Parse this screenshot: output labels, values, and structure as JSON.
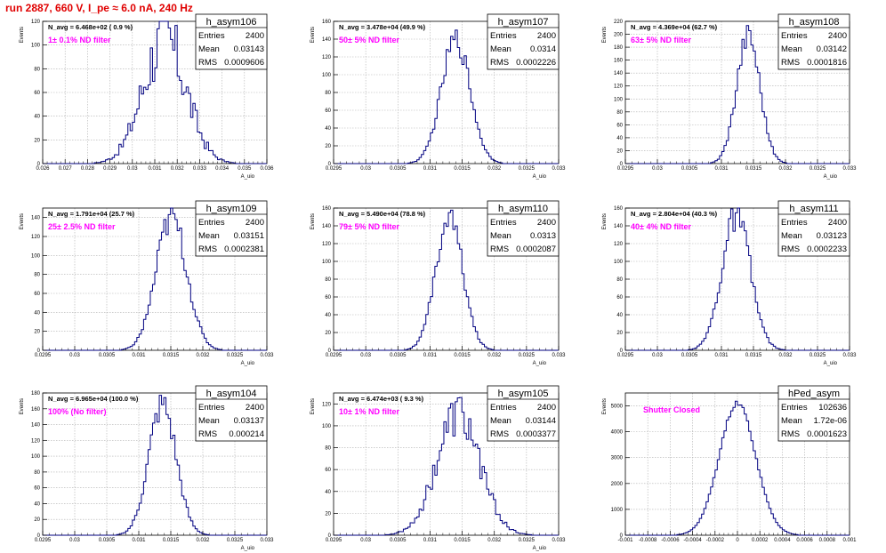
{
  "figure": {
    "title": "run 2887,   660 V, I_pe ≈ 6.0 nA, 240 Hz",
    "colors": {
      "title": "#e00000",
      "histogram": "#000080",
      "annotation": "#ff00ff",
      "grid": "#b0b0b0"
    }
  },
  "stat_labels": {
    "entries": "Entries",
    "mean": "Mean",
    "rms": "RMS"
  },
  "chart_data": [
    {
      "type": "bar",
      "name": "h_asym106",
      "xlabel": "A_uio",
      "ylabel": "Events",
      "navg": "N_avg = 6.468e+02 ( 0.9 %)",
      "filter": "1± 0.1% ND filter",
      "entries": "2400",
      "mean": "0.03143",
      "rms": "0.0009606",
      "mu": 0.03143,
      "sigma": 0.0009606,
      "ymax_data": 105,
      "noise": 0.3,
      "nbins": 100,
      "xlim": [
        0.026,
        0.036
      ],
      "ylim": [
        0,
        120
      ],
      "xticks": [
        "0.026",
        "0.027",
        "0.028",
        "0.029",
        "0.03",
        "0.031",
        "0.032",
        "0.033",
        "0.034",
        "0.035",
        "0.036"
      ],
      "yticks": [
        "0",
        "20",
        "40",
        "60",
        "80",
        "100",
        "120"
      ],
      "grid": true
    },
    {
      "type": "bar",
      "name": "h_asym107",
      "xlabel": "A_uio",
      "ylabel": "Events",
      "navg": "N_avg = 3.478e+04 (49.9 %)",
      "filter": "50± 5% ND filter",
      "entries": "2400",
      "mean": "0.0314",
      "rms": "0.0002226",
      "mu": 0.0314,
      "sigma": 0.0002226,
      "ymax_data": 140,
      "noise": 0.1,
      "nbins": 100,
      "xlim": [
        0.0295,
        0.033
      ],
      "ylim": [
        0,
        160
      ],
      "xticks": [
        "0.0295",
        "0.03",
        "0.0305",
        "0.031",
        "0.0315",
        "0.032",
        "0.0325",
        "0.033"
      ],
      "yticks": [
        "0",
        "20",
        "40",
        "60",
        "80",
        "100",
        "120",
        "140",
        "160"
      ],
      "grid": true
    },
    {
      "type": "bar",
      "name": "h_asym108",
      "xlabel": "A_uio",
      "ylabel": "Events",
      "navg": "N_avg = 4.369e+04 (62.7 %)",
      "filter": "63± 5% ND filter",
      "entries": "2400",
      "mean": "0.03142",
      "rms": "0.0001816",
      "mu": 0.03142,
      "sigma": 0.0001816,
      "ymax_data": 200,
      "noise": 0.1,
      "nbins": 100,
      "xlim": [
        0.0295,
        0.033
      ],
      "ylim": [
        0,
        220
      ],
      "xticks": [
        "0.0295",
        "0.03",
        "0.0305",
        "0.031",
        "0.0315",
        "0.032",
        "0.0325",
        "0.033"
      ],
      "yticks": [
        "0",
        "20",
        "40",
        "60",
        "80",
        "100",
        "120",
        "140",
        "160",
        "180",
        "200",
        "220"
      ],
      "grid": true
    },
    {
      "type": "bar",
      "name": "h_asym109",
      "xlabel": "A_uio",
      "ylabel": "Events",
      "navg": "N_avg = 1.791e+04 (25.7 %)",
      "filter": "25± 2.5% ND filter",
      "entries": "2400",
      "mean": "0.03151",
      "rms": "0.0002381",
      "mu": 0.03151,
      "sigma": 0.0002381,
      "ymax_data": 140,
      "noise": 0.12,
      "nbins": 100,
      "xlim": [
        0.0295,
        0.033
      ],
      "ylim": [
        0,
        150
      ],
      "xticks": [
        "0.0295",
        "0.03",
        "0.0305",
        "0.031",
        "0.0315",
        "0.032",
        "0.0325",
        "0.033"
      ],
      "yticks": [
        "0",
        "20",
        "40",
        "60",
        "80",
        "100",
        "120",
        "140"
      ],
      "grid": true
    },
    {
      "type": "bar",
      "name": "h_asym110",
      "xlabel": "A_uio",
      "ylabel": "Events",
      "navg": "N_avg = 5.490e+04 (78.8 %)",
      "filter": "79± 5% ND filter",
      "entries": "2400",
      "mean": "0.0313",
      "rms": "0.0002087",
      "mu": 0.0313,
      "sigma": 0.0002087,
      "ymax_data": 150,
      "noise": 0.1,
      "nbins": 100,
      "xlim": [
        0.0295,
        0.033
      ],
      "ylim": [
        0,
        160
      ],
      "xticks": [
        "0.0295",
        "0.03",
        "0.0305",
        "0.031",
        "0.0315",
        "0.032",
        "0.0325",
        "0.033"
      ],
      "yticks": [
        "0",
        "20",
        "40",
        "60",
        "80",
        "100",
        "120",
        "140",
        "160"
      ],
      "grid": true
    },
    {
      "type": "bar",
      "name": "h_asym111",
      "xlabel": "A_uio",
      "ylabel": "Events",
      "navg": "N_avg = 2.804e+04 (40.3 %)",
      "filter": "40± 4% ND filter",
      "entries": "2400",
      "mean": "0.03123",
      "rms": "0.0002233",
      "mu": 0.03123,
      "sigma": 0.0002233,
      "ymax_data": 150,
      "noise": 0.12,
      "nbins": 100,
      "xlim": [
        0.0295,
        0.033
      ],
      "ylim": [
        0,
        160
      ],
      "xticks": [
        "0.0295",
        "0.03",
        "0.0305",
        "0.031",
        "0.0315",
        "0.032",
        "0.0325",
        "0.033"
      ],
      "yticks": [
        "0",
        "20",
        "40",
        "60",
        "80",
        "100",
        "120",
        "140",
        "160"
      ],
      "grid": true
    },
    {
      "type": "bar",
      "name": "h_asym104",
      "xlabel": "A_uio",
      "ylabel": "Events",
      "navg": "N_avg = 6.965e+04 (100.0 %)",
      "filter": "100% (No filter)",
      "entries": "2400",
      "mean": "0.03137",
      "rms": "0.000214",
      "mu": 0.03137,
      "sigma": 0.000214,
      "ymax_data": 165,
      "noise": 0.12,
      "nbins": 100,
      "xlim": [
        0.0295,
        0.033
      ],
      "ylim": [
        0,
        180
      ],
      "xticks": [
        "0.0295",
        "0.03",
        "0.0305",
        "0.031",
        "0.0315",
        "0.032",
        "0.0325",
        "0.033"
      ],
      "yticks": [
        "0",
        "20",
        "40",
        "60",
        "80",
        "100",
        "120",
        "140",
        "160",
        "180"
      ],
      "grid": true
    },
    {
      "type": "bar",
      "name": "h_asym105",
      "xlabel": "A_uio",
      "ylabel": "Events",
      "navg": "N_avg = 6.474e+03 ( 9.3 %)",
      "filter": "10± 1% ND filter",
      "entries": "2400",
      "mean": "0.03144",
      "rms": "0.0003377",
      "mu": 0.03144,
      "sigma": 0.0003377,
      "ymax_data": 110,
      "noise": 0.2,
      "nbins": 100,
      "xlim": [
        0.0295,
        0.033
      ],
      "ylim": [
        0,
        130
      ],
      "xticks": [
        "0.0295",
        "0.03",
        "0.0305",
        "0.031",
        "0.0315",
        "0.032",
        "0.0325",
        "0.033"
      ],
      "yticks": [
        "0",
        "20",
        "40",
        "60",
        "80",
        "100",
        "120"
      ],
      "grid": true
    },
    {
      "type": "bar",
      "name": "hPed_asym",
      "xlabel": "",
      "ylabel": "Events",
      "navg": "",
      "filter": "Shutter Closed",
      "entries": "102636",
      "mean": "1.72e-06",
      "rms": "0.0001623",
      "mu": 0.0,
      "sigma": 0.0001623,
      "ymax_data": 5100,
      "noise": 0.02,
      "nbins": 100,
      "xlim": [
        -0.001,
        0.001
      ],
      "ylim": [
        0,
        5500
      ],
      "xticks": [
        "-0.001",
        "-0.0008",
        "-0.0006",
        "-0.0004",
        "-0.0002",
        "0",
        "0.0002",
        "0.0004",
        "0.0006",
        "0.0008",
        "0.001"
      ],
      "yticks": [
        "0",
        "1000",
        "2000",
        "3000",
        "4000",
        "5000"
      ],
      "grid": true
    }
  ]
}
